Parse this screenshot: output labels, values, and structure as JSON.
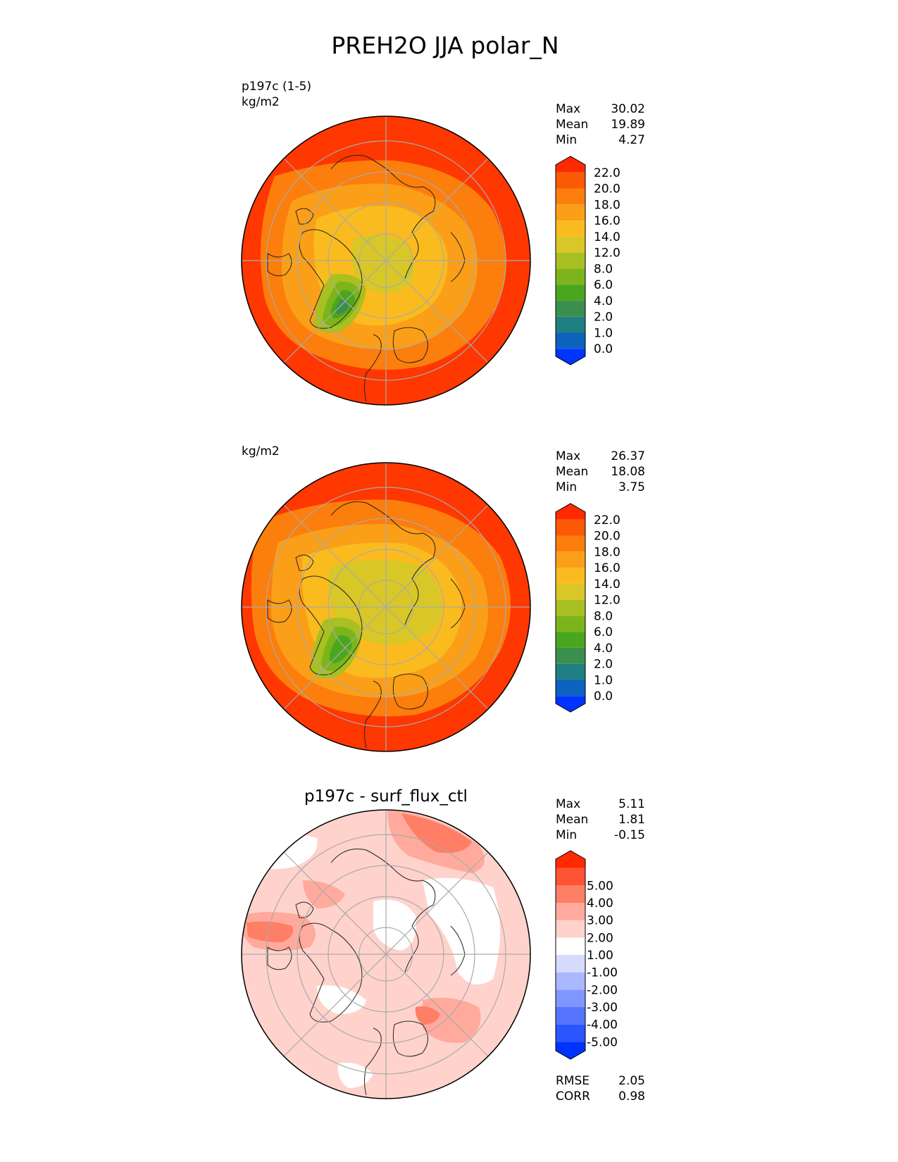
{
  "figure": {
    "title": "PREH2O JJA polar_N"
  },
  "chart_data": [
    {
      "type": "heatmap",
      "projection": "north-polar-stereographic",
      "variable": "PREH2O",
      "season": "JJA",
      "region": "polar_N",
      "case_label": "p197c (1-5)",
      "units": "kg/m2",
      "stats": [
        {
          "label": "Max",
          "value": "30.02"
        },
        {
          "label": "Mean",
          "value": "19.89"
        },
        {
          "label": "Min",
          "value": "4.27"
        }
      ],
      "colorbar": {
        "levels": [
          "0.0",
          "1.0",
          "2.0",
          "4.0",
          "6.0",
          "8.0",
          "12.0",
          "14.0",
          "16.0",
          "18.0",
          "20.0",
          "22.0"
        ],
        "colors": [
          "#0033ff",
          "#0b63bf",
          "#1f7f82",
          "#3a8f4f",
          "#4aa61e",
          "#7cb51b",
          "#a8c021",
          "#d8c726",
          "#fabb1f",
          "#fb9f18",
          "#fc7e0c",
          "#fb5906",
          "#ff2a00"
        ],
        "extend": "both"
      }
    },
    {
      "type": "heatmap",
      "projection": "north-polar-stereographic",
      "variable": "PREH2O",
      "season": "JJA",
      "region": "polar_N",
      "case_label": "",
      "units": "kg/m2",
      "stats": [
        {
          "label": "Max",
          "value": "26.37"
        },
        {
          "label": "Mean",
          "value": "18.08"
        },
        {
          "label": "Min",
          "value": "3.75"
        }
      ],
      "colorbar": {
        "levels": [
          "0.0",
          "1.0",
          "2.0",
          "4.0",
          "6.0",
          "8.0",
          "12.0",
          "14.0",
          "16.0",
          "18.0",
          "20.0",
          "22.0"
        ],
        "colors": [
          "#0033ff",
          "#0b63bf",
          "#1f7f82",
          "#3a8f4f",
          "#4aa61e",
          "#7cb51b",
          "#a8c021",
          "#d8c726",
          "#fabb1f",
          "#fb9f18",
          "#fc7e0c",
          "#fb5906",
          "#ff2a00"
        ],
        "extend": "both"
      }
    },
    {
      "type": "heatmap",
      "projection": "north-polar-stereographic",
      "title": "p197c - surf_flux_ctl",
      "stats": [
        {
          "label": "Max",
          "value": "5.11"
        },
        {
          "label": "Mean",
          "value": "1.81"
        },
        {
          "label": "Min",
          "value": "-0.15"
        }
      ],
      "metrics": [
        {
          "label": "RMSE",
          "value": "2.05"
        },
        {
          "label": "CORR",
          "value": "0.98"
        }
      ],
      "colorbar": {
        "levels": [
          "-5.00",
          "-4.00",
          "-3.00",
          "-2.00",
          "-1.00",
          "1.00",
          "2.00",
          "3.00",
          "4.00",
          "5.00"
        ],
        "colors": [
          "#0032ff",
          "#2b55ff",
          "#5575ff",
          "#8096ff",
          "#aab8ff",
          "#d5dbff",
          "#ffffff",
          "#ffd3cc",
          "#ffaa9c",
          "#ff7e66",
          "#ff5433",
          "#ff2a00"
        ],
        "extend": "both"
      }
    }
  ]
}
